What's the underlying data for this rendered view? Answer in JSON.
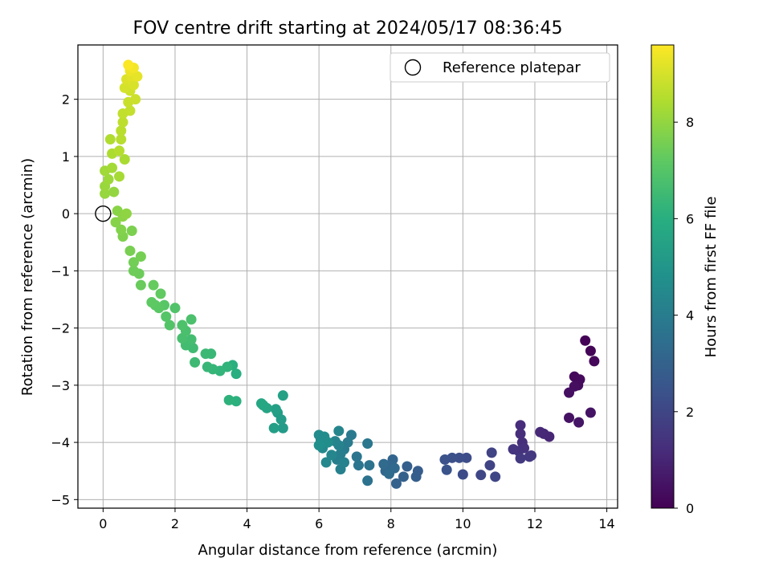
{
  "chart_data": {
    "type": "scatter",
    "title": "FOV centre drift starting at 2024/05/17 08:36:45",
    "xlabel": "Angular distance from reference (arcmin)",
    "ylabel": "Rotation from reference (arcmin)",
    "xlim": [
      -0.7,
      14.3
    ],
    "ylim": [
      -5.15,
      2.95
    ],
    "xticks": [
      "0",
      "2",
      "4",
      "6",
      "8",
      "10",
      "12",
      "14"
    ],
    "yticks": [
      "−5",
      "−4",
      "−3",
      "−2",
      "−1",
      "0",
      "1",
      "2"
    ],
    "grid": true,
    "legend": {
      "placement": "top-right",
      "label": "Reference platepar"
    },
    "reference_point": {
      "x": 0,
      "y": 0
    },
    "colorbar": {
      "label": "Hours from first FF file",
      "ticks": [
        "0",
        "2",
        "4",
        "6",
        "8"
      ],
      "range": [
        0,
        9.6
      ],
      "colormap": "viridis"
    },
    "series": [
      {
        "color_by": "hours",
        "points": [
          {
            "x": 13.4,
            "y": -2.22,
            "h": 0.05
          },
          {
            "x": 13.55,
            "y": -2.4,
            "h": 0.1
          },
          {
            "x": 13.65,
            "y": -2.58,
            "h": 0.15
          },
          {
            "x": 13.1,
            "y": -2.85,
            "h": 0.2
          },
          {
            "x": 13.25,
            "y": -2.9,
            "h": 0.25
          },
          {
            "x": 13.2,
            "y": -3.0,
            "h": 0.3
          },
          {
            "x": 13.1,
            "y": -3.02,
            "h": 0.35
          },
          {
            "x": 12.95,
            "y": -3.13,
            "h": 0.4
          },
          {
            "x": 12.95,
            "y": -3.57,
            "h": 0.45
          },
          {
            "x": 13.55,
            "y": -3.48,
            "h": 0.5
          },
          {
            "x": 13.22,
            "y": -3.65,
            "h": 0.55
          },
          {
            "x": 12.4,
            "y": -3.9,
            "h": 1.0
          },
          {
            "x": 12.25,
            "y": -3.85,
            "h": 1.05
          },
          {
            "x": 12.15,
            "y": -3.82,
            "h": 1.1
          },
          {
            "x": 11.6,
            "y": -3.7,
            "h": 1.2
          },
          {
            "x": 11.6,
            "y": -3.85,
            "h": 1.25
          },
          {
            "x": 11.65,
            "y": -4.0,
            "h": 1.3
          },
          {
            "x": 11.7,
            "y": -4.1,
            "h": 1.35
          },
          {
            "x": 11.55,
            "y": -4.15,
            "h": 1.4
          },
          {
            "x": 11.4,
            "y": -4.12,
            "h": 1.45
          },
          {
            "x": 11.9,
            "y": -4.23,
            "h": 1.5
          },
          {
            "x": 11.85,
            "y": -4.25,
            "h": 1.55
          },
          {
            "x": 11.6,
            "y": -4.28,
            "h": 1.6
          },
          {
            "x": 10.8,
            "y": -4.18,
            "h": 1.9
          },
          {
            "x": 10.75,
            "y": -4.4,
            "h": 1.95
          },
          {
            "x": 10.9,
            "y": -4.6,
            "h": 2.0
          },
          {
            "x": 10.5,
            "y": -4.57,
            "h": 2.05
          },
          {
            "x": 10.0,
            "y": -4.56,
            "h": 2.2
          },
          {
            "x": 10.1,
            "y": -4.27,
            "h": 2.25
          },
          {
            "x": 9.9,
            "y": -4.27,
            "h": 2.3
          },
          {
            "x": 9.7,
            "y": -4.27,
            "h": 2.35
          },
          {
            "x": 9.5,
            "y": -4.3,
            "h": 2.4
          },
          {
            "x": 9.55,
            "y": -4.48,
            "h": 2.45
          },
          {
            "x": 8.75,
            "y": -4.5,
            "h": 2.8
          },
          {
            "x": 8.7,
            "y": -4.6,
            "h": 2.85
          },
          {
            "x": 8.45,
            "y": -4.42,
            "h": 2.9
          },
          {
            "x": 8.35,
            "y": -4.6,
            "h": 2.95
          },
          {
            "x": 8.15,
            "y": -4.72,
            "h": 3.0
          },
          {
            "x": 8.05,
            "y": -4.3,
            "h": 3.1
          },
          {
            "x": 7.95,
            "y": -4.4,
            "h": 3.15
          },
          {
            "x": 7.85,
            "y": -4.5,
            "h": 3.2
          },
          {
            "x": 8.1,
            "y": -4.45,
            "h": 3.25
          },
          {
            "x": 7.8,
            "y": -4.38,
            "h": 3.3
          },
          {
            "x": 7.95,
            "y": -4.55,
            "h": 3.35
          },
          {
            "x": 7.35,
            "y": -4.67,
            "h": 3.6
          },
          {
            "x": 7.4,
            "y": -4.4,
            "h": 3.65
          },
          {
            "x": 7.1,
            "y": -4.4,
            "h": 3.7
          },
          {
            "x": 7.05,
            "y": -4.25,
            "h": 3.75
          },
          {
            "x": 7.35,
            "y": -4.02,
            "h": 3.8
          },
          {
            "x": 6.9,
            "y": -3.87,
            "h": 3.9
          },
          {
            "x": 6.8,
            "y": -4.0,
            "h": 3.95
          },
          {
            "x": 6.7,
            "y": -4.12,
            "h": 4.0
          },
          {
            "x": 6.6,
            "y": -4.2,
            "h": 4.05
          },
          {
            "x": 6.5,
            "y": -4.3,
            "h": 4.1
          },
          {
            "x": 6.6,
            "y": -4.47,
            "h": 4.15
          },
          {
            "x": 6.7,
            "y": -4.35,
            "h": 4.2
          },
          {
            "x": 6.55,
            "y": -4.05,
            "h": 4.25
          },
          {
            "x": 6.45,
            "y": -3.98,
            "h": 4.3
          },
          {
            "x": 6.55,
            "y": -3.8,
            "h": 4.35
          },
          {
            "x": 6.35,
            "y": -4.22,
            "h": 4.4
          },
          {
            "x": 6.2,
            "y": -4.35,
            "h": 4.45
          },
          {
            "x": 6.1,
            "y": -4.1,
            "h": 4.5
          },
          {
            "x": 6.05,
            "y": -3.95,
            "h": 4.55
          },
          {
            "x": 6.0,
            "y": -3.87,
            "h": 4.6
          },
          {
            "x": 6.15,
            "y": -3.9,
            "h": 4.65
          },
          {
            "x": 6.25,
            "y": -4.0,
            "h": 4.7
          },
          {
            "x": 6.0,
            "y": -4.05,
            "h": 4.75
          },
          {
            "x": 5.0,
            "y": -3.75,
            "h": 5.2
          },
          {
            "x": 4.95,
            "y": -3.6,
            "h": 5.25
          },
          {
            "x": 4.85,
            "y": -3.48,
            "h": 5.3
          },
          {
            "x": 4.75,
            "y": -3.75,
            "h": 5.35
          },
          {
            "x": 4.8,
            "y": -3.42,
            "h": 5.4
          },
          {
            "x": 5.0,
            "y": -3.18,
            "h": 5.45
          },
          {
            "x": 4.55,
            "y": -3.4,
            "h": 5.6
          },
          {
            "x": 4.45,
            "y": -3.35,
            "h": 5.65
          },
          {
            "x": 4.4,
            "y": -3.32,
            "h": 5.7
          },
          {
            "x": 3.7,
            "y": -2.8,
            "h": 6.0
          },
          {
            "x": 3.6,
            "y": -2.65,
            "h": 6.05
          },
          {
            "x": 3.7,
            "y": -3.28,
            "h": 6.1
          },
          {
            "x": 3.5,
            "y": -3.26,
            "h": 6.15
          },
          {
            "x": 3.45,
            "y": -2.68,
            "h": 6.2
          },
          {
            "x": 3.25,
            "y": -2.75,
            "h": 6.25
          },
          {
            "x": 3.05,
            "y": -2.72,
            "h": 6.3
          },
          {
            "x": 2.9,
            "y": -2.68,
            "h": 6.35
          },
          {
            "x": 3.0,
            "y": -2.45,
            "h": 6.4
          },
          {
            "x": 2.85,
            "y": -2.45,
            "h": 6.45
          },
          {
            "x": 2.55,
            "y": -2.6,
            "h": 6.5
          },
          {
            "x": 2.5,
            "y": -2.35,
            "h": 6.55
          },
          {
            "x": 2.3,
            "y": -2.3,
            "h": 6.6
          },
          {
            "x": 2.45,
            "y": -2.2,
            "h": 6.65
          },
          {
            "x": 2.2,
            "y": -2.18,
            "h": 6.7
          },
          {
            "x": 2.3,
            "y": -2.05,
            "h": 6.75
          },
          {
            "x": 2.45,
            "y": -1.85,
            "h": 6.8
          },
          {
            "x": 2.2,
            "y": -1.95,
            "h": 6.85
          },
          {
            "x": 2.0,
            "y": -1.65,
            "h": 6.9
          },
          {
            "x": 1.85,
            "y": -1.95,
            "h": 6.95
          },
          {
            "x": 1.75,
            "y": -1.8,
            "h": 7.0
          },
          {
            "x": 1.7,
            "y": -1.6,
            "h": 7.05
          },
          {
            "x": 1.55,
            "y": -1.65,
            "h": 7.1
          },
          {
            "x": 1.45,
            "y": -1.6,
            "h": 7.15
          },
          {
            "x": 1.35,
            "y": -1.55,
            "h": 7.2
          },
          {
            "x": 1.6,
            "y": -1.4,
            "h": 7.25
          },
          {
            "x": 1.4,
            "y": -1.25,
            "h": 7.3
          },
          {
            "x": 1.05,
            "y": -1.25,
            "h": 7.35
          },
          {
            "x": 1.0,
            "y": -1.05,
            "h": 7.4
          },
          {
            "x": 0.85,
            "y": -1.0,
            "h": 7.45
          },
          {
            "x": 0.85,
            "y": -0.85,
            "h": 7.5
          },
          {
            "x": 1.05,
            "y": -0.75,
            "h": 7.55
          },
          {
            "x": 0.75,
            "y": -0.65,
            "h": 7.6
          },
          {
            "x": 0.8,
            "y": -0.3,
            "h": 7.65
          },
          {
            "x": 0.55,
            "y": -0.4,
            "h": 7.7
          },
          {
            "x": 0.5,
            "y": -0.28,
            "h": 7.75
          },
          {
            "x": 0.35,
            "y": -0.15,
            "h": 7.8
          },
          {
            "x": 0.4,
            "y": 0.05,
            "h": 7.85
          },
          {
            "x": 0.55,
            "y": -0.05,
            "h": 7.9
          },
          {
            "x": 0.65,
            "y": 0.0,
            "h": 7.95
          },
          {
            "x": 0.3,
            "y": 0.38,
            "h": 8.0
          },
          {
            "x": 0.05,
            "y": 0.35,
            "h": 8.05
          },
          {
            "x": 0.05,
            "y": 0.48,
            "h": 8.1
          },
          {
            "x": 0.15,
            "y": 0.6,
            "h": 8.15
          },
          {
            "x": 0.05,
            "y": 0.75,
            "h": 8.2
          },
          {
            "x": 0.25,
            "y": 0.8,
            "h": 8.25
          },
          {
            "x": 0.45,
            "y": 0.65,
            "h": 8.3
          },
          {
            "x": 0.6,
            "y": 0.95,
            "h": 8.35
          },
          {
            "x": 0.25,
            "y": 1.05,
            "h": 8.4
          },
          {
            "x": 0.2,
            "y": 1.3,
            "h": 8.45
          },
          {
            "x": 0.45,
            "y": 1.1,
            "h": 8.5
          },
          {
            "x": 0.5,
            "y": 1.3,
            "h": 8.55
          },
          {
            "x": 0.5,
            "y": 1.45,
            "h": 8.6
          },
          {
            "x": 0.55,
            "y": 1.6,
            "h": 8.65
          },
          {
            "x": 0.55,
            "y": 1.75,
            "h": 8.7
          },
          {
            "x": 0.75,
            "y": 1.8,
            "h": 8.75
          },
          {
            "x": 0.7,
            "y": 1.95,
            "h": 8.8
          },
          {
            "x": 0.9,
            "y": 2.0,
            "h": 8.85
          },
          {
            "x": 0.75,
            "y": 2.15,
            "h": 8.9
          },
          {
            "x": 0.6,
            "y": 2.2,
            "h": 9.0
          },
          {
            "x": 0.85,
            "y": 2.25,
            "h": 9.05
          },
          {
            "x": 0.65,
            "y": 2.35,
            "h": 9.1
          },
          {
            "x": 0.8,
            "y": 2.4,
            "h": 9.2
          },
          {
            "x": 0.95,
            "y": 2.4,
            "h": 9.25
          },
          {
            "x": 0.75,
            "y": 2.5,
            "h": 9.35
          },
          {
            "x": 0.85,
            "y": 2.55,
            "h": 9.45
          },
          {
            "x": 0.7,
            "y": 2.6,
            "h": 9.55
          }
        ]
      }
    ]
  }
}
